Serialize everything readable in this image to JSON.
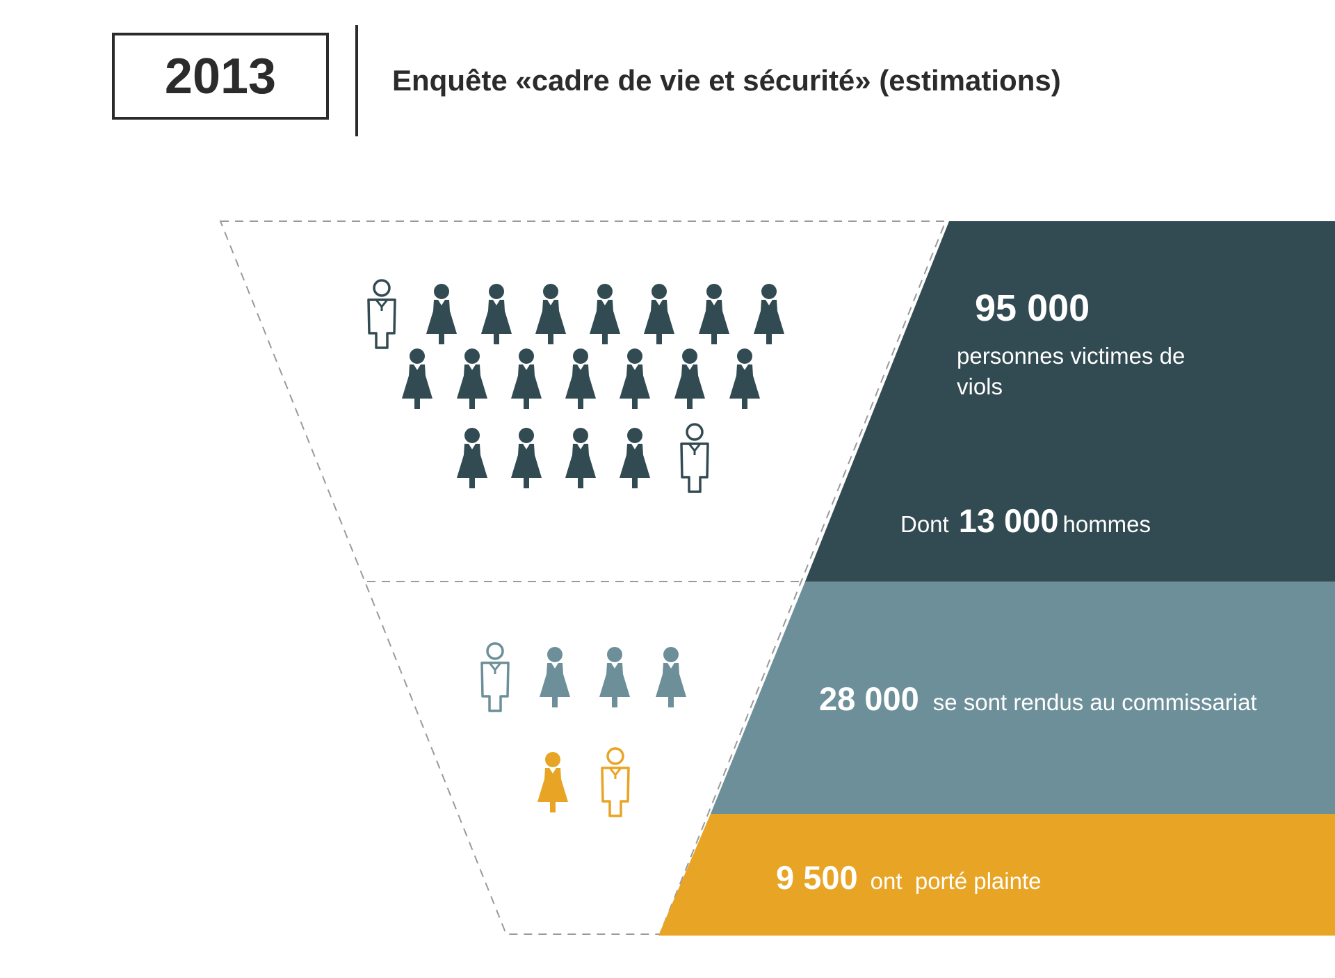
{
  "header": {
    "year": "2013",
    "title": "Enquête «cadre de vie et sécurité» (estimations)"
  },
  "colors": {
    "dark": "#324a51",
    "mid": "#6c8f99",
    "orange": "#e8a424",
    "text": "#2b2b2b"
  },
  "tiers": [
    {
      "id": "victims",
      "number": "95 000",
      "label": "personnes victimes de viols",
      "sub_prefix": "Dont",
      "sub_number": "13 000",
      "sub_suffix": "hommes",
      "icons": [
        "man",
        "woman",
        "woman",
        "woman",
        "woman",
        "woman",
        "woman",
        "woman",
        "woman",
        "woman",
        "woman",
        "woman",
        "woman",
        "woman",
        "woman",
        "woman",
        "woman",
        "woman",
        "woman",
        "man"
      ]
    },
    {
      "id": "police",
      "number": "28 000",
      "label": "se sont rendus au commissariat",
      "icons": [
        "man",
        "woman",
        "woman",
        "woman"
      ]
    },
    {
      "id": "complaint",
      "number": "9 500",
      "label": "ont  porté plainte",
      "icons": [
        "woman",
        "man"
      ]
    }
  ],
  "icon_names": {
    "woman": "woman-icon",
    "man": "man-icon"
  }
}
